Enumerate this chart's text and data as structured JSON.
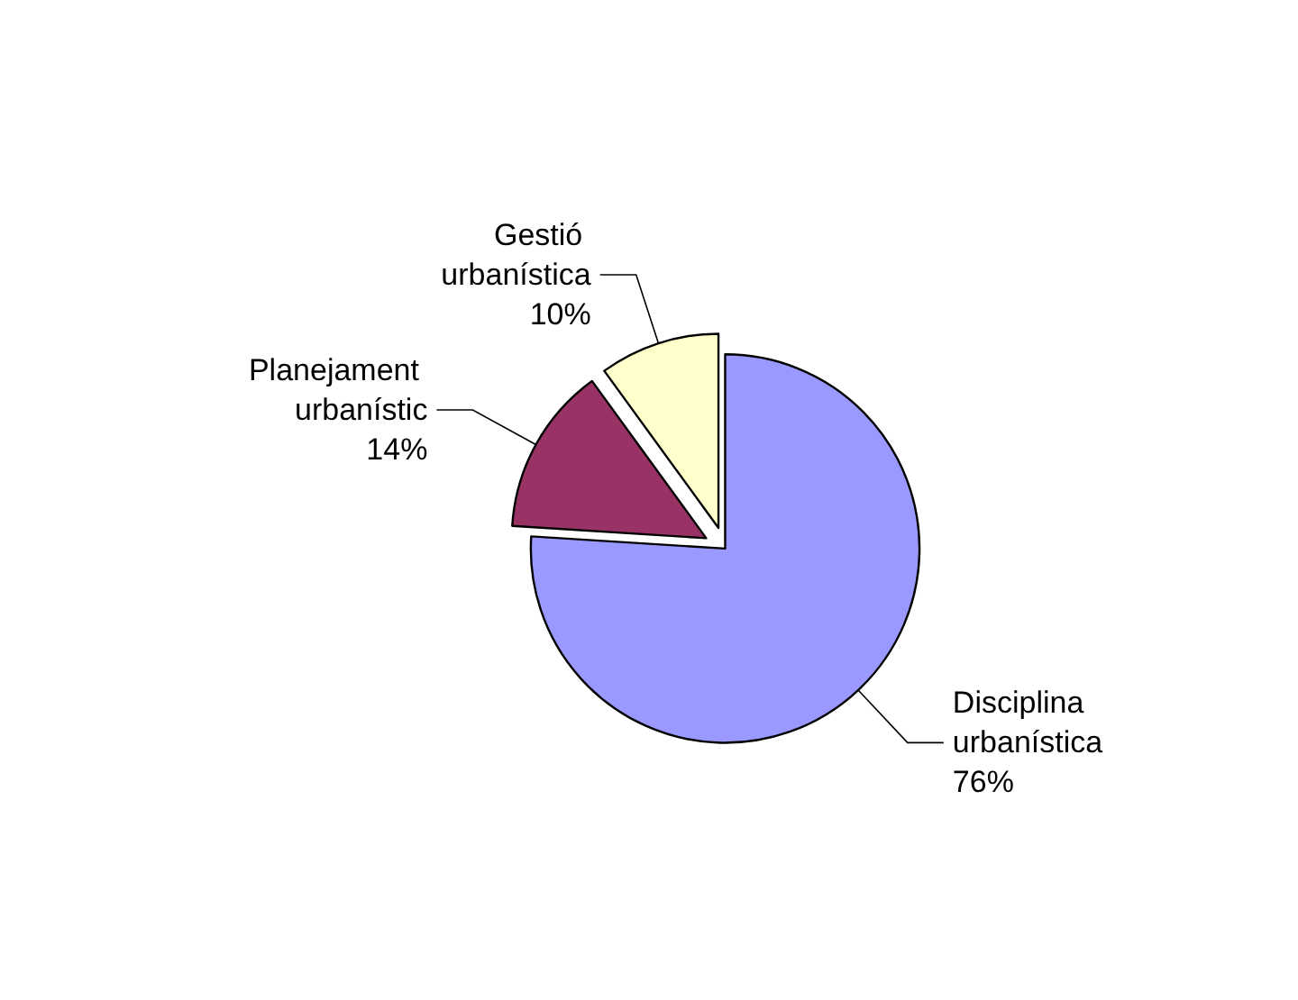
{
  "chart_data": {
    "type": "pie",
    "categories": [
      "Disciplina urbanística",
      "Planejament urbanístic",
      "Gestió urbanística"
    ],
    "values": [
      76,
      14,
      10
    ],
    "colors": [
      "#9999ff",
      "#993366",
      "#ffffcc"
    ],
    "value_labels": [
      "76%",
      "14%",
      "10%"
    ],
    "legend": false
  }
}
